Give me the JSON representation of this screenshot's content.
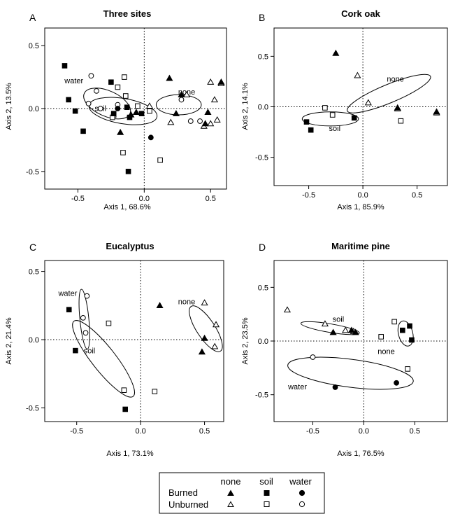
{
  "figure": "ordination panels",
  "legend": {
    "col_headers": [
      "none",
      "soil",
      "water"
    ],
    "row_labels": [
      "Burned",
      "Unburned"
    ],
    "burned_markers": [
      "filled-triangle",
      "filled-square",
      "filled-circle"
    ],
    "unburned_markers": [
      "open-triangle",
      "open-square",
      "open-circle"
    ]
  },
  "chart_data": [
    {
      "type": "scatter",
      "panel_label": "A",
      "title": "Three sites",
      "xlabel": "Axis 1, 68.6%",
      "ylabel": "Axis 2, 13.5%",
      "xlim": [
        -0.75,
        0.62
      ],
      "ylim": [
        -0.64,
        0.64
      ],
      "xticks": [
        -0.5,
        0.0,
        0.5
      ],
      "yticks": [
        -0.5,
        0.0,
        0.5
      ],
      "tick_labels_x": [
        "-0.5",
        "0.0",
        "0.5"
      ],
      "tick_labels_y": [
        "-0.5",
        "0.0",
        "0.5"
      ],
      "ellipses": [
        {
          "label": "water",
          "cx": -0.28,
          "cy": 0.04,
          "rx": 0.19,
          "ry": 0.1,
          "angle": -25,
          "label_pos": [
            -0.53,
            0.2
          ]
        },
        {
          "label": "soil",
          "cx": -0.16,
          "cy": -0.02,
          "rx": 0.26,
          "ry": 0.1,
          "angle": -10,
          "label_pos": [
            -0.33,
            -0.02
          ]
        },
        {
          "label": "none",
          "cx": 0.26,
          "cy": 0.03,
          "rx": 0.17,
          "ry": 0.08,
          "angle": 0,
          "label_pos": [
            0.32,
            0.11
          ]
        }
      ],
      "series": [
        {
          "name": "none",
          "burned": false,
          "marker": "triangle",
          "x": [
            0.04,
            0.2,
            0.5,
            0.58,
            0.53,
            0.55,
            0.32,
            0.45,
            0.5
          ],
          "y": [
            0.02,
            -0.11,
            0.21,
            0.2,
            0.07,
            -0.09,
            0.11,
            -0.14,
            -0.12
          ]
        },
        {
          "name": "none",
          "burned": true,
          "marker": "triangle",
          "x": [
            0.19,
            0.24,
            0.28,
            0.46,
            0.48,
            0.58,
            -0.18,
            -0.1,
            -0.06
          ],
          "y": [
            0.24,
            -0.04,
            0.11,
            -0.12,
            -0.03,
            0.21,
            -0.19,
            -0.05,
            -0.03
          ]
        },
        {
          "name": "soil",
          "burned": false,
          "marker": "square",
          "x": [
            -0.2,
            -0.15,
            -0.14,
            -0.05,
            -0.23,
            0.12,
            -0.16,
            0.04,
            -0.24
          ],
          "y": [
            0.17,
            0.25,
            0.1,
            0.02,
            -0.05,
            -0.41,
            -0.35,
            -0.02,
            -0.07
          ]
        },
        {
          "name": "soil",
          "burned": true,
          "marker": "square",
          "x": [
            -0.6,
            -0.57,
            -0.52,
            -0.46,
            -0.25,
            -0.23,
            -0.13,
            -0.11,
            -0.02,
            -0.12
          ],
          "y": [
            0.34,
            0.07,
            -0.02,
            -0.18,
            0.21,
            -0.04,
            0.01,
            -0.07,
            -0.04,
            -0.5
          ]
        },
        {
          "name": "water",
          "burned": false,
          "marker": "circle",
          "x": [
            -0.4,
            -0.36,
            -0.42,
            -0.33,
            -0.2,
            0.35,
            0.42,
            0.28
          ],
          "y": [
            0.26,
            0.14,
            0.04,
            0.0,
            0.03,
            -0.1,
            -0.1,
            0.07
          ]
        },
        {
          "name": "water",
          "burned": true,
          "marker": "circle",
          "x": [
            -0.2,
            0.05
          ],
          "y": [
            0.0,
            -0.23
          ]
        }
      ]
    },
    {
      "type": "scatter",
      "panel_label": "B",
      "title": "Cork oak",
      "xlabel": "Axis 1, 85.9%",
      "ylabel": "Axis 2, 14.1%",
      "xlim": [
        -0.82,
        0.78
      ],
      "ylim": [
        -0.78,
        0.78
      ],
      "xticks": [
        -0.5,
        0.0,
        0.5
      ],
      "yticks": [
        -0.5,
        0.0,
        0.5
      ],
      "tick_labels_x": [
        "-0.5",
        "0.0",
        "0.5"
      ],
      "tick_labels_y": [
        "-0.5",
        "0.0",
        "0.5"
      ],
      "ellipses": [
        {
          "label": "none",
          "cx": 0.24,
          "cy": 0.13,
          "rx": 0.42,
          "ry": 0.09,
          "angle": 24,
          "label_pos": [
            0.3,
            0.25
          ]
        },
        {
          "label": "soil",
          "cx": -0.3,
          "cy": -0.12,
          "rx": 0.26,
          "ry": 0.07,
          "angle": 0,
          "label_pos": [
            -0.26,
            -0.24
          ]
        }
      ],
      "series": [
        {
          "name": "none",
          "burned": false,
          "marker": "triangle",
          "x": [
            -0.05,
            0.05,
            0.68,
            0.32
          ],
          "y": [
            0.31,
            0.04,
            -0.06,
            -0.02
          ]
        },
        {
          "name": "none",
          "burned": true,
          "marker": "triangle",
          "x": [
            -0.25,
            0.32,
            0.68
          ],
          "y": [
            0.53,
            -0.01,
            -0.05
          ]
        },
        {
          "name": "soil",
          "burned": false,
          "marker": "square",
          "x": [
            -0.35,
            -0.28,
            0.35
          ],
          "y": [
            -0.01,
            -0.08,
            -0.14
          ]
        },
        {
          "name": "soil",
          "burned": true,
          "marker": "square",
          "x": [
            -0.52,
            -0.48,
            -0.08
          ],
          "y": [
            -0.15,
            -0.23,
            -0.11
          ]
        }
      ]
    },
    {
      "type": "scatter",
      "panel_label": "C",
      "title": "Eucalyptus",
      "xlabel": "Axis 1, 73.1%",
      "ylabel": "Axis 2, 21.4%",
      "xlim": [
        -0.75,
        0.65
      ],
      "ylim": [
        -0.6,
        0.58
      ],
      "xticks": [
        -0.5,
        0.0,
        0.5
      ],
      "yticks": [
        -0.5,
        0.0,
        0.5
      ],
      "tick_labels_x": [
        "-0.5",
        "0.0",
        "0.5"
      ],
      "tick_labels_y": [
        "-0.5",
        "0.0",
        "0.5"
      ],
      "ellipses": [
        {
          "label": "water",
          "cx": -0.44,
          "cy": 0.15,
          "rx": 0.22,
          "ry": 0.035,
          "angle": -84,
          "label_pos": [
            -0.57,
            0.32
          ]
        },
        {
          "label": "soil",
          "cx": -0.29,
          "cy": -0.14,
          "rx": 0.36,
          "ry": 0.09,
          "angle": -50,
          "label_pos": [
            -0.4,
            -0.1
          ]
        },
        {
          "label": "none",
          "cx": 0.51,
          "cy": 0.08,
          "rx": 0.2,
          "ry": 0.07,
          "angle": -55,
          "label_pos": [
            0.36,
            0.26
          ]
        }
      ],
      "series": [
        {
          "name": "none",
          "burned": false,
          "marker": "triangle",
          "x": [
            0.5,
            0.59,
            0.58
          ],
          "y": [
            0.27,
            0.11,
            -0.05
          ]
        },
        {
          "name": "none",
          "burned": true,
          "marker": "triangle",
          "x": [
            0.15,
            0.5,
            0.48
          ],
          "y": [
            0.25,
            0.01,
            -0.09
          ]
        },
        {
          "name": "soil",
          "burned": false,
          "marker": "square",
          "x": [
            -0.25,
            -0.13,
            0.11
          ],
          "y": [
            0.12,
            -0.37,
            -0.38
          ]
        },
        {
          "name": "soil",
          "burned": true,
          "marker": "square",
          "x": [
            -0.56,
            -0.51,
            -0.12
          ],
          "y": [
            0.22,
            -0.08,
            -0.51
          ]
        },
        {
          "name": "water",
          "burned": false,
          "marker": "circle",
          "x": [
            -0.42,
            -0.45,
            -0.43
          ],
          "y": [
            0.32,
            0.16,
            0.05
          ]
        }
      ]
    },
    {
      "type": "scatter",
      "panel_label": "D",
      "title": "Maritime pine",
      "xlabel": "Axis 1, 76.5%",
      "ylabel": "Axis 2, 23.5%",
      "xlim": [
        -0.88,
        0.82
      ],
      "ylim": [
        -0.75,
        0.75
      ],
      "xticks": [
        -0.5,
        0.0,
        0.5
      ],
      "yticks": [
        -0.5,
        0.0,
        0.5
      ],
      "tick_labels_x": [
        "-0.5",
        "0.0",
        "0.5"
      ],
      "tick_labels_y": [
        "-0.5",
        "0.0",
        "0.5"
      ],
      "ellipses": [
        {
          "label": "soil",
          "cx": -0.33,
          "cy": 0.12,
          "rx": 0.29,
          "ry": 0.04,
          "angle": -9,
          "label_pos": [
            -0.25,
            0.18
          ]
        },
        {
          "label": "none",
          "cx": 0.41,
          "cy": 0.07,
          "rx": 0.12,
          "ry": 0.07,
          "angle": -75,
          "label_pos": [
            0.22,
            -0.12
          ]
        },
        {
          "label": "water",
          "cx": -0.13,
          "cy": -0.3,
          "rx": 0.62,
          "ry": 0.13,
          "angle": -7,
          "label_pos": [
            -0.65,
            -0.45
          ]
        }
      ],
      "series": [
        {
          "name": "none",
          "burned": false,
          "marker": "triangle",
          "x": [
            -0.75,
            -0.38,
            -0.18,
            -0.1
          ],
          "y": [
            0.29,
            0.16,
            0.1,
            0.09
          ]
        },
        {
          "name": "none",
          "burned": true,
          "marker": "triangle",
          "x": [
            -0.3,
            -0.12,
            -0.08
          ],
          "y": [
            0.08,
            0.1,
            0.08
          ]
        },
        {
          "name": "soil",
          "burned": false,
          "marker": "square",
          "x": [
            0.17,
            0.3,
            0.43
          ],
          "y": [
            0.04,
            0.18,
            -0.26
          ]
        },
        {
          "name": "soil",
          "burned": true,
          "marker": "square",
          "x": [
            0.38,
            0.45,
            0.47
          ],
          "y": [
            0.1,
            0.14,
            0.01
          ]
        },
        {
          "name": "water",
          "burned": false,
          "marker": "circle",
          "x": [
            -0.5
          ],
          "y": [
            -0.15
          ]
        },
        {
          "name": "water",
          "burned": true,
          "marker": "circle",
          "x": [
            -0.28,
            0.32
          ],
          "y": [
            -0.43,
            -0.39
          ]
        }
      ]
    }
  ]
}
